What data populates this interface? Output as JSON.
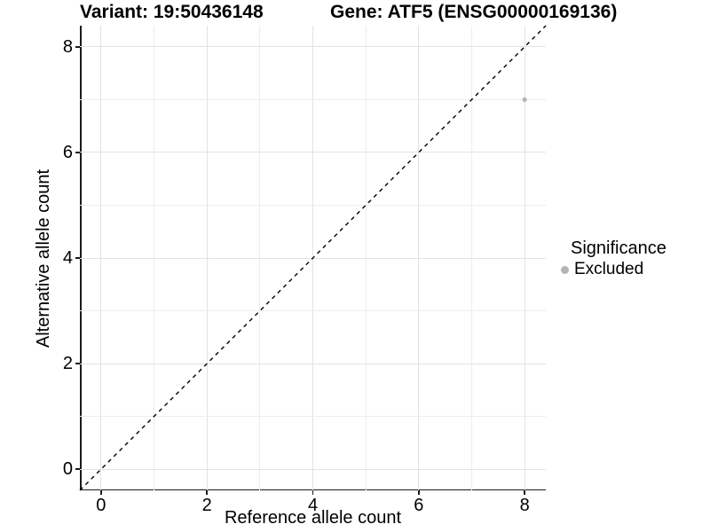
{
  "titles": {
    "variant": "Variant: 19:50436148",
    "gene": "Gene: ATF5 (ENSG00000169136)"
  },
  "axes": {
    "x": {
      "label": "Reference allele count"
    },
    "y": {
      "label": "Alternative allele count"
    }
  },
  "legend": {
    "title": "Significance",
    "items": [
      {
        "label": "Excluded",
        "color": "#b4b4b4"
      }
    ]
  },
  "colors": {
    "background": "#ffffff",
    "text": "#000000",
    "axis": "#1a1a1a",
    "grid_major": "#e3e3e3",
    "grid_minor": "#ededed",
    "refline": "#000000",
    "point": "#b4b4b4"
  },
  "chart_data": {
    "type": "scatter",
    "title_left": "Variant: 19:50436148",
    "title_right": "Gene: ATF5 (ENSG00000169136)",
    "xlabel": "Reference allele count",
    "ylabel": "Alternative allele count",
    "xlim": [
      -0.4,
      8.4
    ],
    "ylim": [
      -0.4,
      8.4
    ],
    "xticks": [
      0,
      2,
      4,
      6,
      8
    ],
    "yticks": [
      0,
      2,
      4,
      6,
      8
    ],
    "grid": {
      "x": [
        0,
        1,
        2,
        3,
        4,
        5,
        6,
        7,
        8
      ],
      "y": [
        0,
        1,
        2,
        3,
        4,
        5,
        6,
        7,
        8
      ]
    },
    "grid_on": true,
    "reference_line": {
      "type": "identity",
      "slope": 1,
      "intercept": 0,
      "style": "dashed"
    },
    "series": [
      {
        "name": "Excluded",
        "color": "#b4b4b4",
        "points": [
          {
            "x": 8,
            "y": 7
          }
        ]
      }
    ],
    "legend_position": "right"
  }
}
